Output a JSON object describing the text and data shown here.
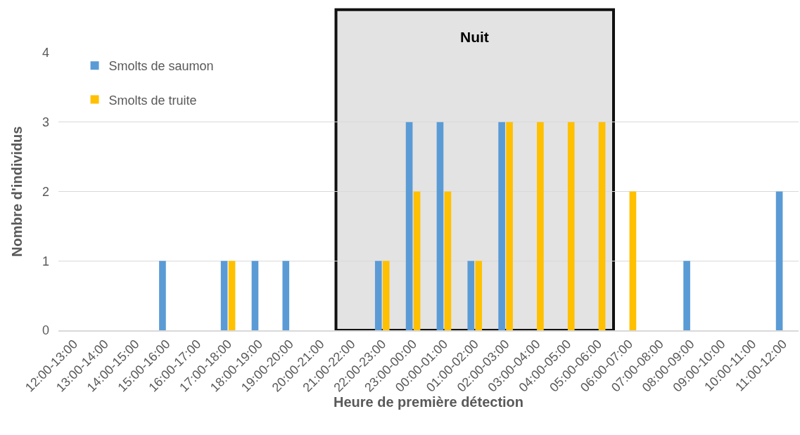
{
  "chart_data": {
    "type": "bar",
    "categories": [
      "12:00-13:00",
      "13:00-14:00",
      "14:00-15:00",
      "15:00-16:00",
      "16:00-17:00",
      "17:00-18:00",
      "18:00-19:00",
      "19:00-20:00",
      "20:00-21:00",
      "21:00-22:00",
      "22:00-23:00",
      "23:00-00:00",
      "00:00-01:00",
      "01:00-02:00",
      "02:00-03:00",
      "03:00-04:00",
      "04:00-05:00",
      "05:00-06:00",
      "06:00-07:00",
      "07:00-08:00",
      "08:00-09:00",
      "09:00-10:00",
      "10:00-11:00",
      "11:00-12:00"
    ],
    "series": [
      {
        "name": "Smolts de saumon",
        "color": "#5b9bd5",
        "values": [
          0,
          0,
          0,
          1,
          0,
          1,
          1,
          1,
          0,
          0,
          1,
          3,
          3,
          1,
          3,
          0,
          0,
          0,
          0,
          0,
          1,
          0,
          0,
          2
        ]
      },
      {
        "name": "Smolts de truite",
        "color": "#ffc000",
        "values": [
          0,
          0,
          0,
          0,
          0,
          1,
          0,
          0,
          0,
          0,
          1,
          2,
          2,
          1,
          3,
          3,
          3,
          3,
          2,
          0,
          0,
          0,
          0,
          0
        ]
      }
    ],
    "xlabel": "Heure de première détection",
    "ylabel": "Nombre d'individus",
    "ylim": [
      0,
      4
    ],
    "yticks": [
      0,
      1,
      2,
      3,
      4
    ],
    "grid": "y",
    "legend": "top left",
    "bands": [
      {
        "axis": "x",
        "from": "21:00-22:00",
        "to": "05:00-06:00",
        "label": "Nuit",
        "color": "#e3e3e3"
      }
    ]
  }
}
